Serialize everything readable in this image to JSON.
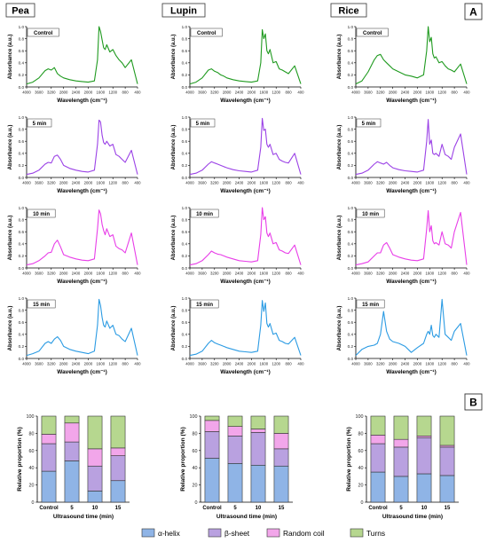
{
  "figure": {
    "columns": [
      "Pea",
      "Lupin",
      "Rice"
    ],
    "panel_a_label": "A",
    "panel_b_label": "B"
  },
  "ftir": {
    "row_labels": [
      "Control",
      "5 min",
      "10 min",
      "15 min"
    ],
    "colors": [
      "#1f9a1f",
      "#9b42e6",
      "#e83ee8",
      "#2b9be3"
    ],
    "ylabel": "Absorbance (a.u.)",
    "xlabel": "Wavelength (cm⁻¹)",
    "x_ticks": [
      "4000",
      "3600",
      "3200",
      "2800",
      "2400",
      "2000",
      "1600",
      "1200",
      "800",
      "400"
    ],
    "y_ticks": [
      "0.0",
      "0.2",
      "0.4",
      "0.6",
      "0.8",
      "1.0"
    ]
  },
  "chart_data": [
    {
      "type": "line",
      "title": "Pea",
      "xlabel": "Wavelength (cm⁻¹)",
      "ylabel": "Absorbance (a.u.)",
      "xlim": [
        4000,
        400
      ],
      "ylim": [
        0,
        1
      ],
      "series": [
        {
          "name": "Control",
          "x": [
            4000,
            3800,
            3600,
            3400,
            3300,
            3200,
            3100,
            3000,
            2900,
            2800,
            2600,
            2400,
            2200,
            2000,
            1800,
            1700,
            1650,
            1600,
            1550,
            1500,
            1450,
            1400,
            1300,
            1200,
            1100,
            1000,
            900,
            800,
            600,
            400
          ],
          "y": [
            0.05,
            0.08,
            0.15,
            0.27,
            0.3,
            0.28,
            0.32,
            0.22,
            0.18,
            0.15,
            0.12,
            0.1,
            0.09,
            0.08,
            0.1,
            0.45,
            1.0,
            0.92,
            0.78,
            0.65,
            0.62,
            0.7,
            0.58,
            0.62,
            0.52,
            0.45,
            0.4,
            0.32,
            0.45,
            0.05
          ]
        },
        {
          "name": "5 min",
          "x": [
            4000,
            3800,
            3600,
            3400,
            3300,
            3200,
            3100,
            3000,
            2900,
            2800,
            2600,
            2400,
            2200,
            2000,
            1800,
            1700,
            1650,
            1600,
            1550,
            1500,
            1450,
            1400,
            1300,
            1200,
            1100,
            1000,
            900,
            800,
            600,
            400
          ],
          "y": [
            0.05,
            0.07,
            0.12,
            0.22,
            0.25,
            0.24,
            0.35,
            0.37,
            0.3,
            0.2,
            0.15,
            0.12,
            0.1,
            0.09,
            0.12,
            0.55,
            0.95,
            0.92,
            0.7,
            0.58,
            0.55,
            0.6,
            0.52,
            0.55,
            0.38,
            0.35,
            0.3,
            0.25,
            0.45,
            0.05
          ]
        },
        {
          "name": "10 min",
          "x": [
            4000,
            3800,
            3600,
            3400,
            3300,
            3200,
            3100,
            3000,
            2900,
            2800,
            2600,
            2400,
            2200,
            2000,
            1800,
            1700,
            1650,
            1600,
            1550,
            1500,
            1450,
            1400,
            1300,
            1200,
            1100,
            1000,
            900,
            800,
            600,
            400
          ],
          "y": [
            0.05,
            0.07,
            0.12,
            0.2,
            0.25,
            0.26,
            0.4,
            0.46,
            0.35,
            0.22,
            0.18,
            0.15,
            0.13,
            0.12,
            0.15,
            0.65,
            0.96,
            0.9,
            0.72,
            0.62,
            0.55,
            0.65,
            0.52,
            0.55,
            0.36,
            0.32,
            0.3,
            0.25,
            0.58,
            0.05
          ]
        },
        {
          "name": "15 min",
          "x": [
            4000,
            3800,
            3600,
            3400,
            3300,
            3200,
            3100,
            3000,
            2900,
            2800,
            2600,
            2400,
            2200,
            2000,
            1800,
            1700,
            1650,
            1600,
            1550,
            1500,
            1450,
            1400,
            1300,
            1200,
            1100,
            1000,
            900,
            800,
            600,
            400
          ],
          "y": [
            0.05,
            0.08,
            0.12,
            0.25,
            0.28,
            0.25,
            0.32,
            0.36,
            0.3,
            0.2,
            0.15,
            0.12,
            0.1,
            0.08,
            0.12,
            0.55,
            0.98,
            0.88,
            0.68,
            0.55,
            0.52,
            0.62,
            0.5,
            0.55,
            0.4,
            0.38,
            0.32,
            0.28,
            0.5,
            0.05
          ]
        }
      ]
    },
    {
      "type": "line",
      "title": "Lupin",
      "xlabel": "Wavelength (cm⁻¹)",
      "ylabel": "Absorbance (a.u.)",
      "xlim": [
        4000,
        400
      ],
      "ylim": [
        0,
        1
      ],
      "series": [
        {
          "name": "Control",
          "x": [
            4000,
            3800,
            3600,
            3400,
            3300,
            3200,
            3100,
            3000,
            2900,
            2800,
            2600,
            2400,
            2200,
            2000,
            1800,
            1700,
            1650,
            1600,
            1550,
            1500,
            1450,
            1400,
            1300,
            1200,
            1100,
            1000,
            900,
            800,
            600,
            400
          ],
          "y": [
            0.05,
            0.08,
            0.15,
            0.28,
            0.3,
            0.26,
            0.24,
            0.2,
            0.18,
            0.15,
            0.12,
            0.1,
            0.09,
            0.08,
            0.1,
            0.4,
            0.95,
            0.8,
            0.88,
            0.6,
            0.55,
            0.62,
            0.4,
            0.42,
            0.3,
            0.28,
            0.25,
            0.22,
            0.35,
            0.05
          ]
        },
        {
          "name": "5 min",
          "x": [
            4000,
            3800,
            3600,
            3400,
            3300,
            3200,
            3100,
            3000,
            2900,
            2800,
            2600,
            2400,
            2200,
            2000,
            1800,
            1700,
            1650,
            1600,
            1550,
            1500,
            1450,
            1400,
            1300,
            1200,
            1100,
            1000,
            900,
            800,
            600,
            400
          ],
          "y": [
            0.05,
            0.07,
            0.12,
            0.22,
            0.26,
            0.24,
            0.22,
            0.2,
            0.18,
            0.16,
            0.13,
            0.11,
            0.1,
            0.09,
            0.12,
            0.5,
            0.98,
            0.78,
            0.8,
            0.55,
            0.5,
            0.55,
            0.38,
            0.4,
            0.3,
            0.27,
            0.25,
            0.24,
            0.4,
            0.05
          ]
        },
        {
          "name": "10 min",
          "x": [
            4000,
            3800,
            3600,
            3400,
            3300,
            3200,
            3100,
            3000,
            2900,
            2800,
            2600,
            2400,
            2200,
            2000,
            1800,
            1700,
            1650,
            1600,
            1550,
            1500,
            1450,
            1400,
            1300,
            1200,
            1100,
            1000,
            900,
            800,
            600,
            400
          ],
          "y": [
            0.05,
            0.07,
            0.12,
            0.22,
            0.28,
            0.25,
            0.23,
            0.22,
            0.2,
            0.18,
            0.15,
            0.12,
            0.11,
            0.1,
            0.12,
            0.55,
            1.0,
            0.8,
            0.85,
            0.58,
            0.52,
            0.58,
            0.4,
            0.42,
            0.3,
            0.28,
            0.25,
            0.24,
            0.38,
            0.05
          ]
        },
        {
          "name": "15 min",
          "x": [
            4000,
            3800,
            3600,
            3400,
            3300,
            3200,
            3100,
            3000,
            2900,
            2800,
            2600,
            2400,
            2200,
            2000,
            1800,
            1700,
            1650,
            1600,
            1550,
            1500,
            1450,
            1400,
            1300,
            1200,
            1100,
            1000,
            900,
            800,
            600,
            400
          ],
          "y": [
            0.05,
            0.07,
            0.12,
            0.25,
            0.3,
            0.26,
            0.24,
            0.22,
            0.2,
            0.18,
            0.15,
            0.12,
            0.11,
            0.1,
            0.12,
            0.55,
            0.96,
            0.78,
            0.92,
            0.58,
            0.52,
            0.58,
            0.4,
            0.42,
            0.3,
            0.28,
            0.25,
            0.24,
            0.35,
            0.05
          ]
        }
      ]
    },
    {
      "type": "line",
      "title": "Rice",
      "xlabel": "Wavelength (cm⁻¹)",
      "ylabel": "Absorbance (a.u.)",
      "xlim": [
        4000,
        400
      ],
      "ylim": [
        0,
        1
      ],
      "series": [
        {
          "name": "Control",
          "x": [
            4000,
            3800,
            3600,
            3400,
            3300,
            3200,
            3100,
            3000,
            2900,
            2800,
            2600,
            2400,
            2200,
            2000,
            1800,
            1700,
            1650,
            1600,
            1550,
            1500,
            1450,
            1400,
            1300,
            1200,
            1100,
            1000,
            900,
            800,
            600,
            400
          ],
          "y": [
            0.05,
            0.1,
            0.25,
            0.45,
            0.52,
            0.54,
            0.45,
            0.4,
            0.35,
            0.3,
            0.25,
            0.2,
            0.18,
            0.15,
            0.2,
            0.6,
            1.0,
            0.75,
            0.82,
            0.55,
            0.48,
            0.5,
            0.4,
            0.42,
            0.35,
            0.3,
            0.28,
            0.25,
            0.38,
            0.05
          ]
        },
        {
          "name": "5 min",
          "x": [
            4000,
            3800,
            3600,
            3400,
            3300,
            3200,
            3100,
            3000,
            2900,
            2800,
            2600,
            2400,
            2200,
            2000,
            1800,
            1700,
            1650,
            1600,
            1550,
            1500,
            1450,
            1400,
            1300,
            1200,
            1100,
            1000,
            900,
            800,
            600,
            400
          ],
          "y": [
            0.05,
            0.07,
            0.12,
            0.22,
            0.26,
            0.24,
            0.22,
            0.25,
            0.2,
            0.16,
            0.13,
            0.11,
            0.1,
            0.09,
            0.12,
            0.6,
            0.96,
            0.55,
            0.62,
            0.4,
            0.38,
            0.4,
            0.35,
            0.55,
            0.38,
            0.35,
            0.3,
            0.5,
            0.72,
            0.05
          ]
        },
        {
          "name": "10 min",
          "x": [
            4000,
            3800,
            3600,
            3400,
            3300,
            3200,
            3100,
            3000,
            2900,
            2800,
            2600,
            2400,
            2200,
            2000,
            1800,
            1700,
            1650,
            1600,
            1550,
            1500,
            1450,
            1400,
            1300,
            1200,
            1100,
            1000,
            900,
            800,
            600,
            400
          ],
          "y": [
            0.05,
            0.07,
            0.1,
            0.2,
            0.25,
            0.25,
            0.38,
            0.42,
            0.33,
            0.22,
            0.18,
            0.15,
            0.13,
            0.12,
            0.15,
            0.65,
            0.95,
            0.6,
            0.7,
            0.45,
            0.4,
            0.42,
            0.38,
            0.6,
            0.4,
            0.38,
            0.33,
            0.6,
            0.92,
            0.05
          ]
        },
        {
          "name": "15 min",
          "x": [
            4000,
            3800,
            3600,
            3400,
            3300,
            3200,
            3100,
            3000,
            2900,
            2800,
            2600,
            2400,
            2200,
            2000,
            1800,
            1700,
            1650,
            1600,
            1550,
            1500,
            1450,
            1400,
            1300,
            1200,
            1100,
            1000,
            900,
            800,
            600,
            400
          ],
          "y": [
            0.05,
            0.15,
            0.2,
            0.22,
            0.25,
            0.4,
            0.78,
            0.45,
            0.32,
            0.28,
            0.25,
            0.2,
            0.1,
            0.18,
            0.25,
            0.4,
            0.45,
            0.4,
            0.55,
            0.38,
            0.35,
            0.4,
            0.35,
            0.98,
            0.4,
            0.35,
            0.3,
            0.45,
            0.58,
            0.05
          ]
        }
      ]
    },
    {
      "type": "bar",
      "stacked": true,
      "title": "Pea",
      "xlabel": "Ultrasound time (min)",
      "ylabel": "Relative proportion (%)",
      "categories": [
        "Control",
        "5",
        "10",
        "15"
      ],
      "ylim": [
        0,
        100
      ],
      "y_ticks": [
        "0",
        "20",
        "40",
        "60",
        "80",
        "100"
      ],
      "series": [
        {
          "name": "α-helix",
          "values": [
            36,
            48,
            13,
            25
          ]
        },
        {
          "name": "β-sheet",
          "values": [
            32,
            22,
            29,
            29
          ]
        },
        {
          "name": "Random coil",
          "values": [
            11,
            22,
            20,
            9
          ]
        },
        {
          "name": "Turns",
          "values": [
            21,
            8,
            38,
            37
          ]
        }
      ]
    },
    {
      "type": "bar",
      "stacked": true,
      "title": "Lupin",
      "xlabel": "Ultrasound time (min)",
      "ylabel": "Relative proportion (%)",
      "categories": [
        "Control",
        "5",
        "10",
        "15"
      ],
      "ylim": [
        0,
        100
      ],
      "y_ticks": [
        "0",
        "20",
        "40",
        "60",
        "80",
        "100"
      ],
      "series": [
        {
          "name": "α-helix",
          "values": [
            51,
            45,
            43,
            42
          ]
        },
        {
          "name": "β-sheet",
          "values": [
            31,
            32,
            38,
            20
          ]
        },
        {
          "name": "Random coil",
          "values": [
            13,
            11,
            4,
            18
          ]
        },
        {
          "name": "Turns",
          "values": [
            5,
            12,
            15,
            20
          ]
        }
      ]
    },
    {
      "type": "bar",
      "stacked": true,
      "title": "Rice",
      "xlabel": "Ultrasound time (min)",
      "ylabel": "Relative proportion (%)",
      "categories": [
        "Control",
        "5",
        "10",
        "15"
      ],
      "ylim": [
        0,
        100
      ],
      "y_ticks": [
        "0",
        "20",
        "40",
        "60",
        "80",
        "100"
      ],
      "series": [
        {
          "name": "α-helix",
          "values": [
            35,
            30,
            33,
            31
          ]
        },
        {
          "name": "β-sheet",
          "values": [
            33,
            34,
            42,
            33
          ]
        },
        {
          "name": "Random coil",
          "values": [
            10,
            9,
            2,
            2
          ]
        },
        {
          "name": "Turns",
          "values": [
            22,
            27,
            23,
            34
          ]
        }
      ]
    }
  ],
  "bar_colors": [
    "#8fb4e6",
    "#b9a1e0",
    "#f2a6ea",
    "#b6d78f"
  ],
  "legend": [
    "α-helix",
    "β-sheet",
    "Random coil",
    "Turns"
  ]
}
